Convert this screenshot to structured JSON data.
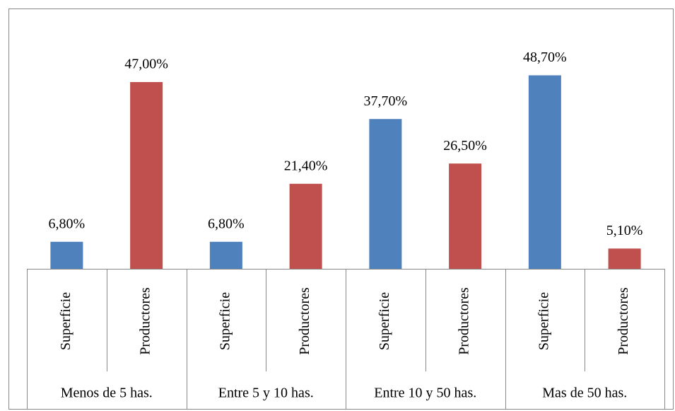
{
  "chart_data": {
    "type": "bar",
    "categories": [
      "Menos de 5 has.",
      "Entre 5 y 10 has.",
      "Entre 10 y 50 has.",
      "Mas de 50 has."
    ],
    "series": [
      {
        "name": "Superficie",
        "color": "#4f81bd",
        "values": [
          6.8,
          6.8,
          37.7,
          48.7
        ],
        "value_labels": [
          "6,80%",
          "6,80%",
          "37,70%",
          "48,70%"
        ]
      },
      {
        "name": "Productores",
        "color": "#c0504d",
        "values": [
          47,
          21.4,
          26.5,
          5.1
        ],
        "value_labels": [
          "47,00%",
          "21,40%",
          "26,50%",
          "5,10%"
        ]
      }
    ],
    "ylim": [
      0,
      60
    ]
  }
}
